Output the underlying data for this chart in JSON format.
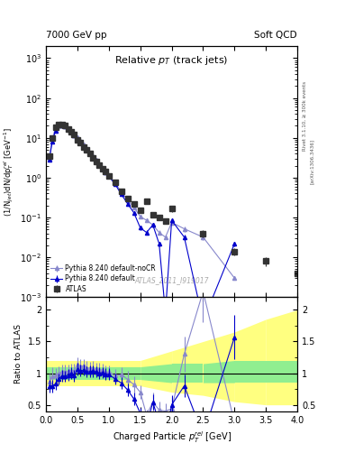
{
  "title_left": "7000 GeV pp",
  "title_right": "Soft QCD",
  "plot_title": "Relative $p_T$ (track jets)",
  "xlabel": "Charged Particle $p_T^{rel}$ [GeV]",
  "ylabel_main": "(1/N$_{jet}$)dN/dp$_T^{rel}$ [GeV$^{-1}$]",
  "ylabel_ratio": "Ratio to ATLAS",
  "watermark": "ATLAS_2011_I919017",
  "side_text": "Rivet 3.1.10, ≥ 300k events",
  "side_text2": "[arXiv:1306.3436]",
  "xlim": [
    0,
    4
  ],
  "ylim_main": [
    0.001,
    2000.0
  ],
  "ylim_ratio": [
    0.4,
    2.2
  ],
  "atlas_x": [
    0.05,
    0.1,
    0.15,
    0.2,
    0.25,
    0.3,
    0.35,
    0.4,
    0.45,
    0.5,
    0.55,
    0.6,
    0.65,
    0.7,
    0.75,
    0.8,
    0.85,
    0.9,
    0.95,
    1.0,
    1.1,
    1.2,
    1.3,
    1.4,
    1.5,
    1.6,
    1.7,
    1.8,
    1.9,
    2.0,
    2.5,
    3.0,
    3.5,
    4.0
  ],
  "atlas_y": [
    3.5,
    10,
    18,
    22,
    22,
    20,
    17,
    14,
    12,
    9,
    7.5,
    6,
    5,
    4,
    3.2,
    2.6,
    2.1,
    1.7,
    1.4,
    1.1,
    0.75,
    0.45,
    0.3,
    0.22,
    0.15,
    0.25,
    0.12,
    0.1,
    0.08,
    0.17,
    0.04,
    0.014,
    0.008,
    0.004
  ],
  "atlas_yerr": [
    0.5,
    1,
    2,
    2.5,
    2.5,
    2,
    1.5,
    1.2,
    1.0,
    0.8,
    0.6,
    0.5,
    0.4,
    0.3,
    0.25,
    0.2,
    0.15,
    0.12,
    0.1,
    0.08,
    0.06,
    0.04,
    0.025,
    0.02,
    0.015,
    0.03,
    0.015,
    0.01,
    0.01,
    0.03,
    0.008,
    0.003,
    0.002,
    0.001
  ],
  "pythia_default_x": [
    0.05,
    0.1,
    0.15,
    0.2,
    0.25,
    0.3,
    0.35,
    0.4,
    0.45,
    0.5,
    0.55,
    0.6,
    0.65,
    0.7,
    0.75,
    0.8,
    0.85,
    0.9,
    0.95,
    1.0,
    1.1,
    1.2,
    1.3,
    1.4,
    1.5,
    1.6,
    1.7,
    1.8,
    1.9,
    2.0,
    2.2,
    2.5,
    3.0
  ],
  "pythia_default_y": [
    2.8,
    8,
    15,
    20,
    21,
    19,
    16.5,
    14,
    11.5,
    9.5,
    7.8,
    6.3,
    5.1,
    4.1,
    3.3,
    2.65,
    2.1,
    1.72,
    1.38,
    1.08,
    0.68,
    0.38,
    0.22,
    0.13,
    0.055,
    0.042,
    0.065,
    0.022,
    0.0004,
    0.085,
    0.032,
    0.00025,
    0.022
  ],
  "pythia_default_yerr": [
    0.3,
    0.8,
    1.5,
    2,
    2,
    1.8,
    1.5,
    1.2,
    1.0,
    0.8,
    0.6,
    0.5,
    0.4,
    0.3,
    0.25,
    0.2,
    0.15,
    0.12,
    0.1,
    0.08,
    0.05,
    0.03,
    0.02,
    0.012,
    0.006,
    0.005,
    0.008,
    0.003,
    0.0001,
    0.012,
    0.005,
    0.0001,
    0.003
  ],
  "pythia_nocr_x": [
    0.05,
    0.1,
    0.15,
    0.2,
    0.25,
    0.3,
    0.35,
    0.4,
    0.45,
    0.5,
    0.55,
    0.6,
    0.65,
    0.7,
    0.75,
    0.8,
    0.85,
    0.9,
    0.95,
    1.0,
    1.1,
    1.2,
    1.3,
    1.4,
    1.5,
    1.6,
    1.7,
    1.8,
    1.9,
    2.0,
    2.2,
    2.5,
    3.0
  ],
  "pythia_nocr_y": [
    3.0,
    9.5,
    17.5,
    22,
    22.5,
    20.5,
    17.5,
    14.5,
    12.5,
    10.2,
    8.3,
    6.7,
    5.4,
    4.3,
    3.45,
    2.75,
    2.22,
    1.78,
    1.42,
    1.12,
    0.72,
    0.44,
    0.27,
    0.18,
    0.105,
    0.085,
    0.065,
    0.042,
    0.032,
    0.075,
    0.052,
    0.032,
    0.003
  ],
  "pythia_nocr_yerr": [
    0.4,
    1.0,
    1.8,
    2.2,
    2.2,
    1.9,
    1.5,
    1.2,
    1.0,
    0.8,
    0.6,
    0.5,
    0.4,
    0.3,
    0.25,
    0.2,
    0.15,
    0.12,
    0.1,
    0.08,
    0.05,
    0.03,
    0.02,
    0.015,
    0.01,
    0.008,
    0.006,
    0.005,
    0.004,
    0.01,
    0.008,
    0.005,
    0.0003
  ],
  "ratio_pythia_default_x": [
    0.05,
    0.1,
    0.15,
    0.2,
    0.25,
    0.3,
    0.35,
    0.4,
    0.45,
    0.5,
    0.55,
    0.6,
    0.65,
    0.7,
    0.75,
    0.8,
    0.85,
    0.9,
    0.95,
    1.0,
    1.1,
    1.2,
    1.3,
    1.4,
    1.5,
    1.6,
    1.7,
    1.8,
    1.9,
    2.0,
    2.2,
    2.5,
    3.0
  ],
  "ratio_pythia_default_y": [
    0.8,
    0.8,
    0.83,
    0.91,
    0.955,
    0.95,
    0.97,
    1.0,
    0.96,
    1.06,
    1.04,
    1.05,
    1.02,
    1.025,
    1.03,
    1.02,
    1.0,
    1.01,
    0.986,
    0.982,
    0.907,
    0.844,
    0.733,
    0.591,
    0.367,
    0.168,
    0.542,
    0.22,
    0.005,
    0.5,
    0.8,
    0.018,
    1.57
  ],
  "ratio_pythia_default_yerr": [
    0.1,
    0.1,
    0.09,
    0.09,
    0.09,
    0.09,
    0.09,
    0.09,
    0.09,
    0.1,
    0.09,
    0.09,
    0.09,
    0.09,
    0.09,
    0.09,
    0.09,
    0.09,
    0.09,
    0.09,
    0.09,
    0.09,
    0.1,
    0.1,
    0.08,
    0.06,
    0.12,
    0.08,
    0.002,
    0.15,
    0.18,
    0.006,
    0.35
  ],
  "ratio_pythia_nocr_x": [
    0.05,
    0.1,
    0.15,
    0.2,
    0.25,
    0.3,
    0.35,
    0.4,
    0.45,
    0.5,
    0.55,
    0.6,
    0.65,
    0.7,
    0.75,
    0.8,
    0.85,
    0.9,
    0.95,
    1.0,
    1.1,
    1.2,
    1.3,
    1.4,
    1.5,
    1.6,
    1.7,
    1.8,
    1.9,
    2.0,
    2.2,
    2.5,
    3.0
  ],
  "ratio_pythia_nocr_y": [
    0.86,
    0.95,
    0.97,
    1.0,
    1.023,
    1.025,
    1.03,
    1.036,
    1.042,
    1.133,
    1.107,
    1.117,
    1.08,
    1.075,
    1.078,
    1.058,
    1.057,
    1.047,
    1.014,
    1.018,
    0.96,
    0.978,
    0.9,
    0.818,
    0.7,
    0.34,
    0.542,
    0.42,
    0.4,
    0.44,
    1.3,
    2.29,
    0.214
  ],
  "ratio_pythia_nocr_yerr": [
    0.14,
    0.14,
    0.11,
    0.11,
    0.11,
    0.11,
    0.11,
    0.11,
    0.11,
    0.12,
    0.11,
    0.11,
    0.11,
    0.11,
    0.11,
    0.11,
    0.11,
    0.11,
    0.11,
    0.11,
    0.11,
    0.11,
    0.13,
    0.13,
    0.11,
    0.09,
    0.15,
    0.13,
    0.13,
    0.18,
    0.28,
    0.48,
    0.05
  ],
  "band_x_edges": [
    0.0,
    0.5,
    1.0,
    1.5,
    2.0,
    2.5,
    3.0,
    3.5,
    4.0
  ],
  "band_green_lo": [
    0.9,
    0.9,
    0.9,
    0.9,
    0.85,
    0.85,
    0.85,
    0.85,
    0.85
  ],
  "band_green_hi": [
    1.1,
    1.1,
    1.1,
    1.1,
    1.15,
    1.15,
    1.2,
    1.2,
    1.2
  ],
  "band_yellow_lo": [
    0.8,
    0.8,
    0.8,
    0.8,
    0.7,
    0.65,
    0.55,
    0.5,
    0.5
  ],
  "band_yellow_hi": [
    1.2,
    1.2,
    1.2,
    1.2,
    1.35,
    1.5,
    1.65,
    1.85,
    2.0
  ],
  "color_atlas": "#333333",
  "color_pythia_default": "#0000cc",
  "color_pythia_nocr": "#8888cc",
  "color_green_band": "#90ee90",
  "color_yellow_band": "#ffff80",
  "background_color": "#ffffff"
}
